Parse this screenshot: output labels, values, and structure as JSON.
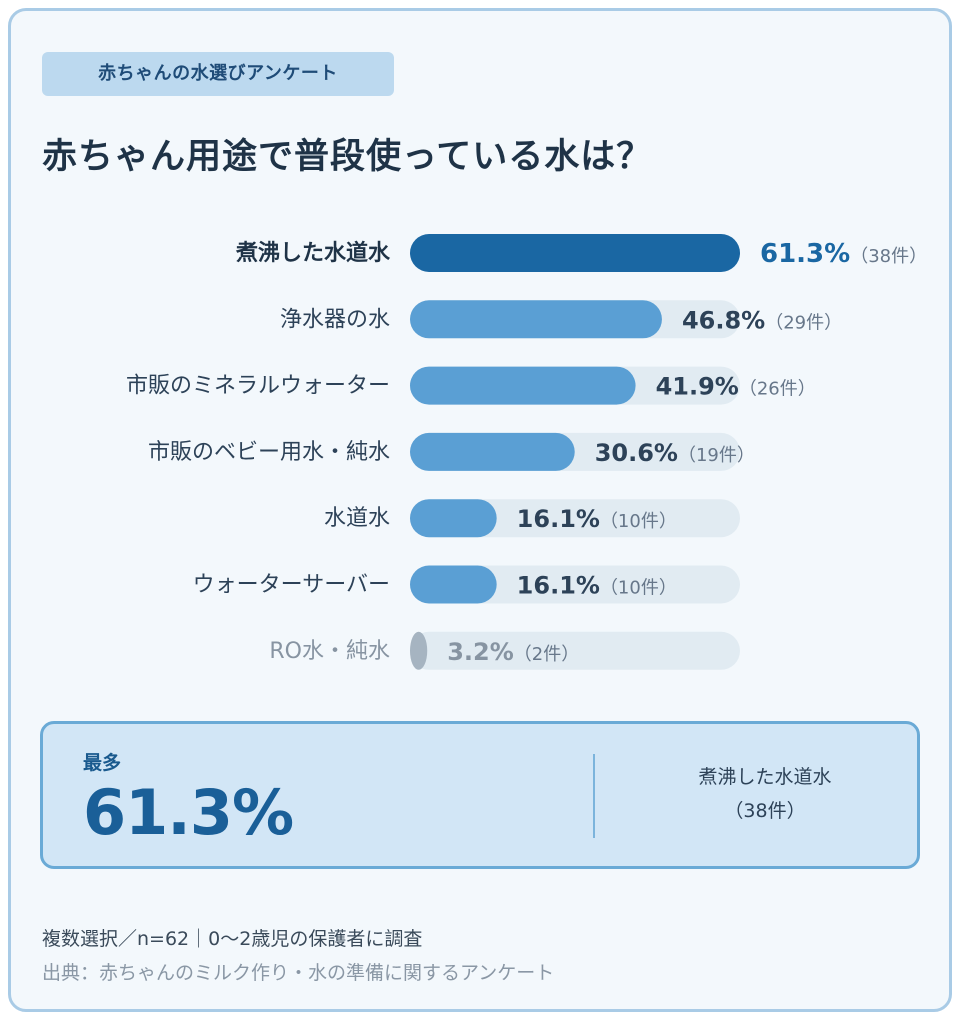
{
  "tag": "赤ちゃんの水選びアンケート",
  "title": "赤ちゃん用途で普段使っている水は？",
  "chart_data": {
    "type": "bar",
    "orientation": "horizontal",
    "title": "赤ちゃん用途で普段使っている水は？",
    "categories": [
      "煮沸した水道水",
      "浄水器の水",
      "市販のミネラルウォーター",
      "市販のベビー用水・純水",
      "水道水",
      "ウォーターサーバー",
      "RO水・純水"
    ],
    "values": [
      61.3,
      46.8,
      41.9,
      30.6,
      16.1,
      16.1,
      3.2
    ],
    "value_labels": [
      "61.3%",
      "46.8%",
      "41.9%",
      "30.6%",
      "16.1%",
      "16.1%",
      "3.2%"
    ],
    "counts": [
      "（38件）",
      "（29件）",
      "（26件）",
      "（19件）",
      "（10件）",
      "（10件）",
      "（2件）"
    ],
    "unit": "%",
    "xlim": [
      0,
      100
    ],
    "colors": {
      "highlight": "#1a67a3",
      "bar": "#5a9fd4",
      "low": "#a6b4c1",
      "track": "#e1ebf2",
      "highlight_text": "#1a67a3",
      "label_text": "#2d4258",
      "low_text": "#8794a2",
      "count_text": "#67778a"
    }
  },
  "summary": {
    "label": "最多",
    "value": "61.3%",
    "name": "煮沸した水道水",
    "count": "（38件）"
  },
  "footer": {
    "note": "複数選択／n=62｜0〜2歳児の保護者に調査",
    "source": "出典：赤ちゃんのミルク作り・水の準備に関するアンケート"
  }
}
